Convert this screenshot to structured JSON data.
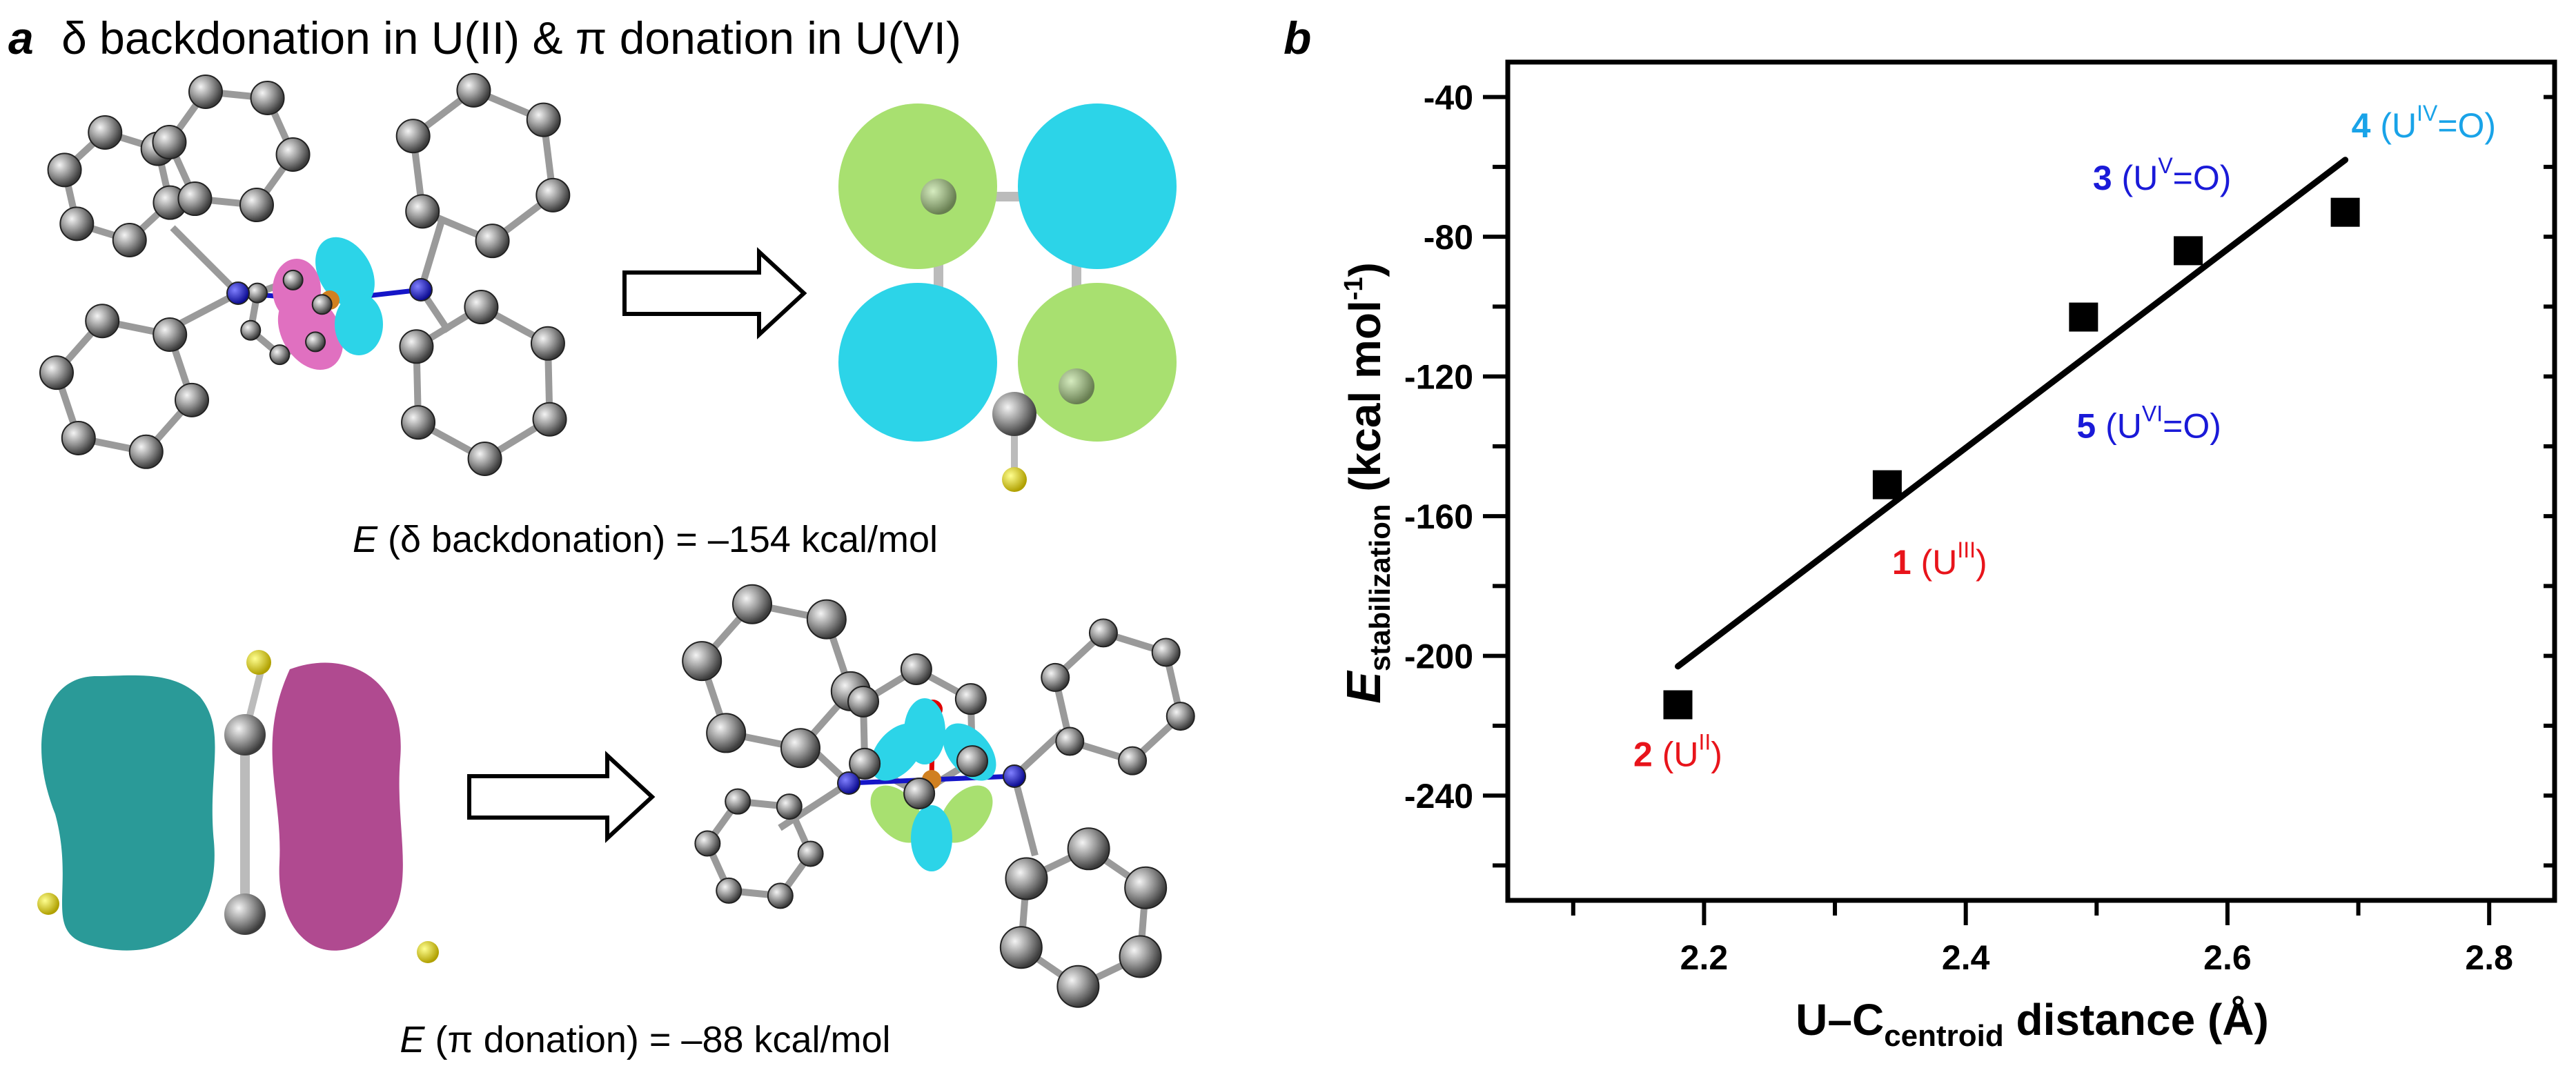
{
  "panel_a": {
    "label": "a",
    "title": "δ backdonation in U(II) & π donation in U(VI)",
    "caption_top": {
      "var": "E",
      "rest": " (δ backdonation) = –154 kcal/mol"
    },
    "caption_bottom": {
      "var": "E",
      "rest": " (π donation) = –88 kcal/mol"
    },
    "colors": {
      "carbon": "#8c8c8c",
      "nitrogen": "#1515c8",
      "hydrogen": "#e8e000",
      "oxygen": "#e00000",
      "lobe_cyan": "#2cd4e8",
      "lobe_green": "#a8e070",
      "lobe_pink": "#e070c0",
      "lobe_teal": "#2a9a98",
      "lobe_magenta": "#b04a90"
    }
  },
  "chart_data": {
    "type": "scatter",
    "panel_label": "b",
    "ylabel": {
      "main": "E",
      "sub": "stabilization",
      "unit": " (kcal mol",
      "unit_sup": "-1",
      "unit_end": ")"
    },
    "xlabel": {
      "main": "U–C",
      "sub": "centroid",
      "rest": " distance (Å)"
    },
    "xlim": [
      2.05,
      2.85
    ],
    "ylim": [
      -270,
      -30
    ],
    "xticks": [
      "2.2",
      "2.4",
      "2.6",
      "2.8"
    ],
    "yticks": [
      "-40",
      "-80",
      "-120",
      "-160",
      "-200",
      "-240"
    ],
    "grid": false,
    "points": [
      {
        "x": 2.18,
        "y": -214
      },
      {
        "x": 2.34,
        "y": -151
      },
      {
        "x": 2.49,
        "y": -103
      },
      {
        "x": 2.57,
        "y": -84
      },
      {
        "x": 2.69,
        "y": -73
      }
    ],
    "fit_line": {
      "x": [
        2.18,
        2.69
      ],
      "y": [
        -203,
        -58
      ]
    },
    "annotations": [
      {
        "num": "2",
        "pre": " (U",
        "sup": "II",
        "post": ")",
        "color": "#e8141b",
        "x": 2.18,
        "y": -228
      },
      {
        "num": "1",
        "pre": " (U",
        "sup": "III",
        "post": ")",
        "color": "#e8141b",
        "x": 2.38,
        "y": -173
      },
      {
        "num": "5",
        "pre": " (U",
        "sup": "VI",
        "post": "=O)",
        "color": "#1a1ad8",
        "x": 2.54,
        "y": -134
      },
      {
        "num": "3",
        "pre": " (U",
        "sup": "V",
        "post": "=O)",
        "color": "#1a1ad8",
        "x": 2.55,
        "y": -63
      },
      {
        "num": "4",
        "pre": " (U",
        "sup": "IV",
        "post": "=O)",
        "color": "#19a3e8",
        "x": 2.75,
        "y": -48
      }
    ]
  }
}
